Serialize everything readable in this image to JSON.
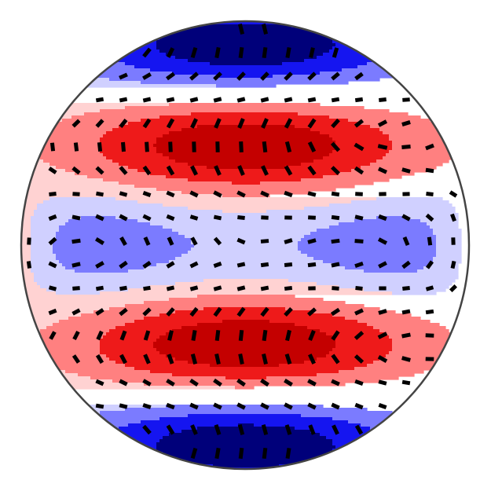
{
  "chart_data": {
    "type": "contour",
    "levels": [
      -1,
      -0.75,
      -0.5,
      -0.25,
      0,
      0.25,
      0.5,
      0.75,
      1
    ],
    "colors": [
      "#00007a",
      "#1515f0",
      "#7b7bff",
      "#d0d0ff",
      "#ffd2d2",
      "#ff8080",
      "#ee1a1a",
      "#c40000"
    ]
  }
}
